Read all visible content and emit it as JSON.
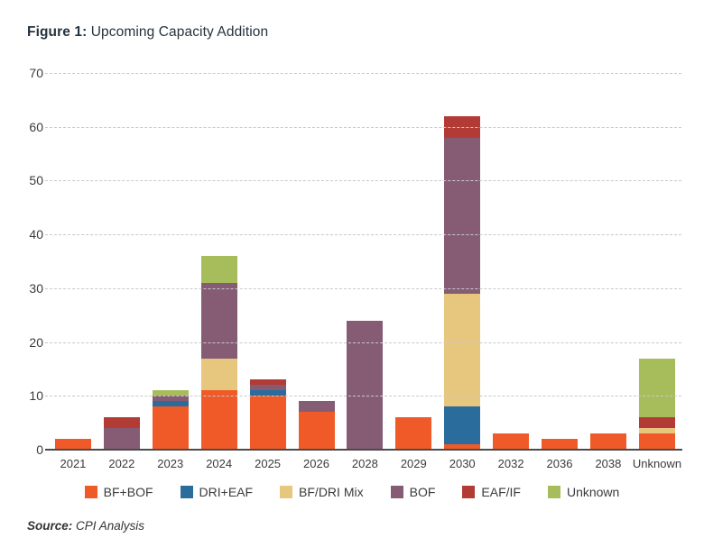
{
  "title": {
    "prefix": "Figure 1:",
    "text": " Upcoming Capacity Addition"
  },
  "source": {
    "prefix": "Source:",
    "text": " CPI Analysis"
  },
  "colors": {
    "bf_bof": "#EF5A28",
    "dri_eaf": "#2A6D9C",
    "bf_dri_mix": "#E7C77E",
    "bof": "#855C74",
    "eaf_if": "#B23B35",
    "unknown": "#A7BD5C",
    "gridline": "#C9C9C9",
    "axis_line": "#4A4A4A",
    "text": "#3B3B3B",
    "title_text": "#26323E"
  },
  "chart_data": {
    "type": "bar",
    "stacked": true,
    "title": "Figure 1: Upcoming Capacity Addition",
    "xlabel": "",
    "ylabel": "",
    "ylim": [
      0,
      70
    ],
    "yticks": [
      0,
      10,
      20,
      30,
      40,
      50,
      60,
      70
    ],
    "grid": "horizontal-dashed",
    "legend_position": "bottom",
    "categories": [
      "2021",
      "2022",
      "2023",
      "2024",
      "2025",
      "2026",
      "2028",
      "2029",
      "2030",
      "2032",
      "2036",
      "2038",
      "Unknown"
    ],
    "series": [
      {
        "name": "BF+BOF",
        "color": "#EF5A28",
        "values": [
          2,
          0,
          8,
          11,
          10,
          7,
          0,
          6,
          1,
          3,
          2,
          3,
          3
        ]
      },
      {
        "name": "DRI+EAF",
        "color": "#2A6D9C",
        "values": [
          0,
          0,
          1,
          0,
          1,
          0,
          0,
          0,
          7,
          0,
          0,
          0,
          0
        ]
      },
      {
        "name": "BF/DRI Mix",
        "color": "#E7C77E",
        "values": [
          0,
          0,
          0,
          6,
          0,
          0,
          0,
          0,
          21,
          0,
          0,
          0,
          1
        ]
      },
      {
        "name": "BOF",
        "color": "#855C74",
        "values": [
          0,
          4,
          1,
          14,
          1,
          2,
          24,
          0,
          29,
          0,
          0,
          0,
          0
        ]
      },
      {
        "name": "EAF/IF",
        "color": "#B23B35",
        "values": [
          0,
          2,
          0,
          0,
          1,
          0,
          0,
          0,
          4,
          0,
          0,
          0,
          2
        ]
      },
      {
        "name": "Unknown",
        "color": "#A7BD5C",
        "values": [
          0,
          0,
          1,
          5,
          0,
          0,
          0,
          0,
          0,
          0,
          0,
          0,
          11
        ]
      }
    ],
    "totals": [
      2,
      6,
      11,
      36,
      13,
      9,
      24,
      6,
      62,
      3,
      2,
      3,
      17
    ]
  }
}
